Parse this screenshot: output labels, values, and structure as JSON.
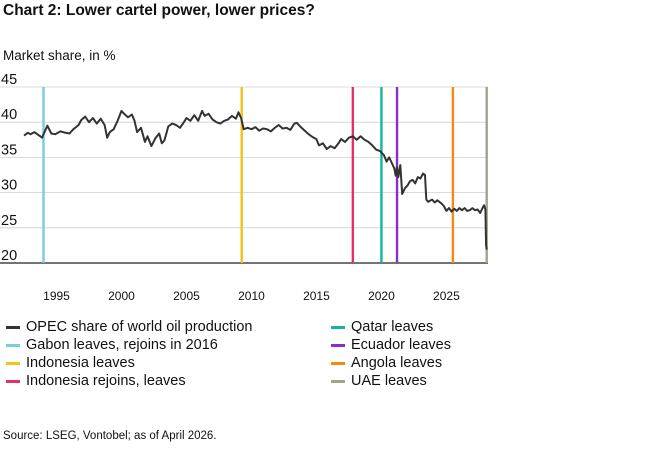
{
  "chart_data": {
    "type": "line",
    "title": "Chart 2: Lower cartel power, lower prices?",
    "ylabel": "Market share, in %",
    "xlim": [
      1992.5,
      2028.2
    ],
    "ylim": [
      20,
      45
    ],
    "yticks": [
      20,
      25,
      30,
      35,
      40,
      45
    ],
    "xticks": [
      1995,
      2000,
      2005,
      2010,
      2015,
      2020,
      2025
    ],
    "grid": "horizontal",
    "legend_position": "bottom",
    "series": [
      {
        "name": "OPEC share of world oil production",
        "color": "#333333",
        "points": [
          [
            1992.5,
            38.1
          ],
          [
            1992.8,
            38.5
          ],
          [
            1993.0,
            38.3
          ],
          [
            1993.3,
            38.6
          ],
          [
            1993.6,
            38.2
          ],
          [
            1993.9,
            37.8
          ],
          [
            1994.0,
            38.3
          ],
          [
            1994.3,
            39.5
          ],
          [
            1994.6,
            38.4
          ],
          [
            1994.9,
            38.3
          ],
          [
            1995.3,
            38.7
          ],
          [
            1995.7,
            38.5
          ],
          [
            1996.0,
            38.4
          ],
          [
            1996.3,
            39.0
          ],
          [
            1996.7,
            39.6
          ],
          [
            1996.9,
            40.3
          ],
          [
            1997.2,
            40.8
          ],
          [
            1997.5,
            40.0
          ],
          [
            1997.8,
            40.6
          ],
          [
            1998.1,
            39.8
          ],
          [
            1998.4,
            40.5
          ],
          [
            1998.7,
            39.6
          ],
          [
            1998.9,
            37.8
          ],
          [
            1999.1,
            38.6
          ],
          [
            1999.4,
            39.0
          ],
          [
            1999.7,
            40.2
          ],
          [
            2000.0,
            41.6
          ],
          [
            2000.2,
            41.2
          ],
          [
            2000.5,
            40.7
          ],
          [
            2000.8,
            41.1
          ],
          [
            2001.0,
            40.2
          ],
          [
            2001.2,
            38.6
          ],
          [
            2001.5,
            39.2
          ],
          [
            2001.8,
            37.2
          ],
          [
            2002.0,
            38.0
          ],
          [
            2002.3,
            36.6
          ],
          [
            2002.6,
            37.7
          ],
          [
            2002.9,
            38.4
          ],
          [
            2003.1,
            37.0
          ],
          [
            2003.3,
            37.4
          ],
          [
            2003.6,
            39.4
          ],
          [
            2003.9,
            39.8
          ],
          [
            2004.2,
            39.6
          ],
          [
            2004.5,
            39.2
          ],
          [
            2004.8,
            40.0
          ],
          [
            2005.0,
            40.6
          ],
          [
            2005.3,
            40.2
          ],
          [
            2005.6,
            41.0
          ],
          [
            2005.9,
            40.2
          ],
          [
            2006.2,
            41.6
          ],
          [
            2006.4,
            40.9
          ],
          [
            2006.7,
            41.2
          ],
          [
            2007.0,
            40.4
          ],
          [
            2007.3,
            40.0
          ],
          [
            2007.6,
            39.8
          ],
          [
            2007.9,
            40.2
          ],
          [
            2008.2,
            40.4
          ],
          [
            2008.5,
            40.9
          ],
          [
            2008.8,
            40.5
          ],
          [
            2009.0,
            41.4
          ],
          [
            2009.2,
            40.6
          ],
          [
            2009.4,
            39.0
          ],
          [
            2009.7,
            39.2
          ],
          [
            2010.0,
            39.0
          ],
          [
            2010.3,
            39.3
          ],
          [
            2010.6,
            38.8
          ],
          [
            2010.9,
            39.1
          ],
          [
            2011.2,
            39.0
          ],
          [
            2011.5,
            38.7
          ],
          [
            2011.8,
            39.2
          ],
          [
            2012.1,
            39.6
          ],
          [
            2012.4,
            39.1
          ],
          [
            2012.7,
            39.2
          ],
          [
            2013.0,
            38.9
          ],
          [
            2013.3,
            39.8
          ],
          [
            2013.5,
            39.9
          ],
          [
            2013.8,
            39.3
          ],
          [
            2014.1,
            38.8
          ],
          [
            2014.4,
            38.3
          ],
          [
            2014.7,
            37.9
          ],
          [
            2015.0,
            37.6
          ],
          [
            2015.2,
            36.7
          ],
          [
            2015.5,
            37.0
          ],
          [
            2015.8,
            36.2
          ],
          [
            2016.1,
            36.6
          ],
          [
            2016.4,
            36.3
          ],
          [
            2016.7,
            37.0
          ],
          [
            2016.9,
            37.6
          ],
          [
            2017.2,
            37.2
          ],
          [
            2017.5,
            37.8
          ],
          [
            2017.8,
            38.0
          ],
          [
            2018.1,
            37.5
          ],
          [
            2018.4,
            38.0
          ],
          [
            2018.7,
            37.5
          ],
          [
            2019.0,
            37.2
          ],
          [
            2019.3,
            36.7
          ],
          [
            2019.6,
            36.1
          ],
          [
            2019.9,
            35.9
          ],
          [
            2020.2,
            35.3
          ],
          [
            2020.4,
            34.4
          ],
          [
            2020.6,
            35.0
          ],
          [
            2020.8,
            34.2
          ],
          [
            2021.0,
            33.4
          ],
          [
            2021.1,
            32.4
          ],
          [
            2021.2,
            33.6
          ],
          [
            2021.3,
            32.2
          ],
          [
            2021.45,
            33.9
          ],
          [
            2021.6,
            29.8
          ],
          [
            2021.8,
            30.6
          ],
          [
            2022.0,
            31.0
          ],
          [
            2022.2,
            31.6
          ],
          [
            2022.4,
            31.8
          ],
          [
            2022.6,
            31.3
          ],
          [
            2022.8,
            32.2
          ],
          [
            2023.0,
            32.0
          ],
          [
            2023.2,
            32.7
          ],
          [
            2023.35,
            32.5
          ],
          [
            2023.45,
            29.0
          ],
          [
            2023.6,
            28.7
          ],
          [
            2023.9,
            29.0
          ],
          [
            2024.1,
            28.6
          ],
          [
            2024.3,
            28.9
          ],
          [
            2024.6,
            28.5
          ],
          [
            2024.8,
            28.1
          ],
          [
            2025.0,
            27.4
          ],
          [
            2025.2,
            27.8
          ],
          [
            2025.4,
            27.3
          ],
          [
            2025.6,
            27.7
          ],
          [
            2025.8,
            27.4
          ],
          [
            2026.0,
            27.8
          ],
          [
            2026.2,
            27.5
          ],
          [
            2026.4,
            27.8
          ],
          [
            2026.6,
            27.4
          ],
          [
            2026.8,
            27.5
          ],
          [
            2027.0,
            27.8
          ],
          [
            2027.2,
            27.5
          ],
          [
            2027.4,
            27.6
          ],
          [
            2027.6,
            27.1
          ],
          [
            2027.8,
            27.9
          ],
          [
            2027.9,
            28.2
          ],
          [
            2028.0,
            27.6
          ],
          [
            2028.05,
            22.5
          ],
          [
            2028.1,
            21.9
          ]
        ]
      }
    ],
    "events": [
      {
        "name": "Gabon leaves, rejoins in 2016",
        "x": 1994.0,
        "color": "#79CDE3"
      },
      {
        "name": "Indonesia leaves",
        "x": 2009.25,
        "color": "#F3C318"
      },
      {
        "name": "Indonesia rejoins, leaves",
        "x": 2017.8,
        "color": "#E62E6A"
      },
      {
        "name": "Qatar leaves",
        "x": 2020.0,
        "color": "#15B3A2"
      },
      {
        "name": "Ecuador leaves",
        "x": 2021.2,
        "color": "#8E2CC7"
      },
      {
        "name": "Angola leaves",
        "x": 2025.5,
        "color": "#F58A12"
      },
      {
        "name": "UAE leaves",
        "x": 2028.1,
        "color": "#A3A290"
      }
    ],
    "legend": [
      {
        "label": "OPEC share of world oil production",
        "color": "#333333"
      },
      {
        "label": "Gabon leaves, rejoins in 2016",
        "color": "#79CDE3"
      },
      {
        "label": "Indonesia leaves",
        "color": "#F3C318"
      },
      {
        "label": "Indonesia rejoins, leaves",
        "color": "#E62E6A"
      },
      {
        "label": "Qatar leaves",
        "color": "#15B3A2"
      },
      {
        "label": "Ecuador leaves",
        "color": "#8E2CC7"
      },
      {
        "label": "Angola leaves",
        "color": "#F58A12"
      },
      {
        "label": "UAE leaves",
        "color": "#A3A290"
      }
    ]
  },
  "source": "Source: LSEG, Vontobel; as of April 2026."
}
